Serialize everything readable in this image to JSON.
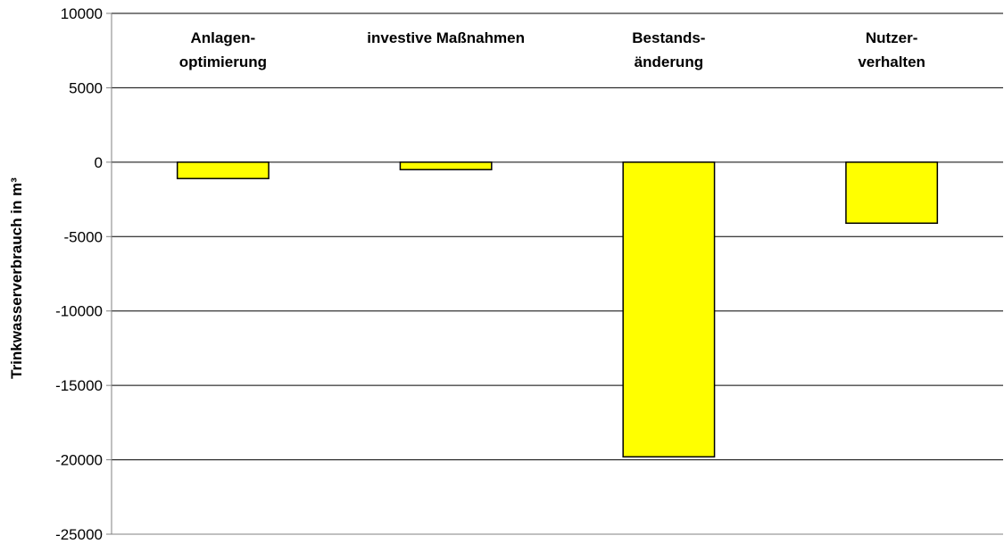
{
  "chart_data": {
    "type": "bar",
    "categories": [
      [
        "Anlagen-",
        "optimierung"
      ],
      [
        "investive Maßnahmen"
      ],
      [
        "Bestands-",
        "änderung"
      ],
      [
        "Nutzer-",
        "verhalten"
      ]
    ],
    "values": [
      -1100,
      -500,
      -19800,
      -4100
    ],
    "ylabel": "Trinkwasserverbrauch in m³",
    "ylim": [
      -25000,
      10000
    ],
    "yticks": [
      10000,
      5000,
      0,
      -5000,
      -10000,
      -15000,
      -20000,
      -25000
    ],
    "grid": true,
    "legend": "none",
    "colors": {
      "bar_fill": "#ffff00",
      "bar_stroke": "#000000",
      "grid": "#000000",
      "axis": "#808080"
    }
  }
}
